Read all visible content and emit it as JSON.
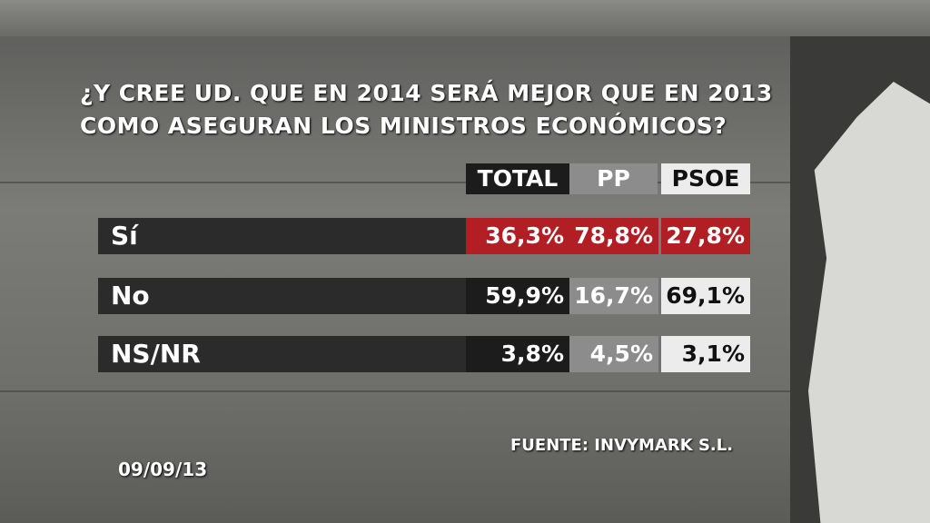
{
  "header": {
    "title_lines": [
      "¿Y CREE UD. QUE EN 2014 SERÁ MEJOR QUE EN 2013",
      "COMO ASEGURAN LOS MINISTROS ECONÓMICOS?"
    ]
  },
  "table": {
    "columns": [
      "TOTAL",
      "PP",
      "PSOE"
    ],
    "rows": [
      {
        "label": "Sí",
        "cells": [
          "36,3%",
          "78,8%",
          "27,8%"
        ]
      },
      {
        "label": "No",
        "cells": [
          "59,9%",
          "16,7%",
          "69,1%"
        ]
      },
      {
        "label": "NS/NR",
        "cells": [
          "3,8%",
          "4,5%",
          "3,1%"
        ]
      }
    ]
  },
  "footer": {
    "source": "FUENTE: INVYMARK S.L.",
    "date": "09/09/13"
  }
}
